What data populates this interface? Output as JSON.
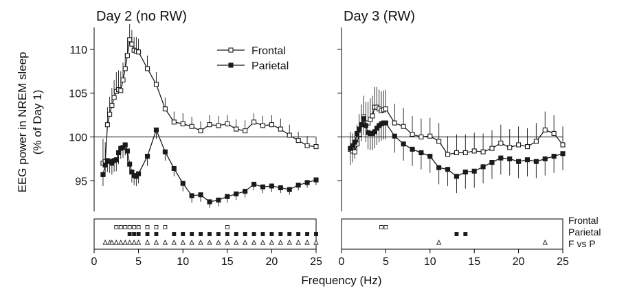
{
  "chart_data": {
    "type": "line",
    "ylabel": "EEG power in NREM sleep\n(% of Day 1)",
    "xlabel": "Frequency (Hz)",
    "xlim": [
      0,
      25
    ],
    "ylim": [
      91.5,
      112.5
    ],
    "xticks": [
      0,
      5,
      10,
      15,
      20,
      25
    ],
    "yticks": [
      95,
      100,
      105,
      110
    ],
    "reference_line": 100,
    "grid": false,
    "legend_position": "top-right of left panel",
    "x": [
      1,
      1.25,
      1.5,
      1.75,
      2,
      2.25,
      2.5,
      2.75,
      3,
      3.25,
      3.5,
      3.75,
      4,
      4.25,
      4.5,
      4.75,
      5,
      6,
      7,
      8,
      9,
      10,
      11,
      12,
      13,
      14,
      15,
      16,
      17,
      18,
      19,
      20,
      21,
      22,
      23,
      24,
      25
    ],
    "panels": [
      {
        "title": "Day 2 (no RW)",
        "series": [
          {
            "name": "Frontal",
            "marker": "open-square",
            "values": [
              97.0,
              97.2,
              101.4,
              102.6,
              103.6,
              104.5,
              105.2,
              105.4,
              105.3,
              106.5,
              107.8,
              109.3,
              111.1,
              110.6,
              109.9,
              109.8,
              109.7,
              107.8,
              106.0,
              103.2,
              101.7,
              101.5,
              101.2,
              100.7,
              101.4,
              101.3,
              101.5,
              100.9,
              100.7,
              101.7,
              101.3,
              101.4,
              100.9,
              100.2,
              99.6,
              99.0,
              98.9
            ],
            "errors": [
              2.8,
              2.2,
              2.0,
              2.0,
              2.0,
              2.0,
              2.2,
              2.2,
              2.2,
              2.0,
              1.8,
              1.6,
              1.8,
              1.6,
              1.5,
              1.6,
              1.5,
              1.5,
              1.4,
              1.3,
              1.2,
              1.2,
              1.1,
              1.1,
              1.1,
              1.1,
              1.0,
              1.1,
              1.2,
              1.0,
              1.1,
              1.1,
              1.2,
              1.2,
              1.0,
              1.1,
              1.1
            ]
          },
          {
            "name": "Parietal",
            "marker": "filled-square",
            "values": [
              95.7,
              96.8,
              97.3,
              97.2,
              97.0,
              97.3,
              97.4,
              98.2,
              98.7,
              98.8,
              99.1,
              98.4,
              96.9,
              96.0,
              95.6,
              95.5,
              95.8,
              97.8,
              100.8,
              98.3,
              96.4,
              94.7,
              93.3,
              93.4,
              92.6,
              92.8,
              93.2,
              93.5,
              93.8,
              94.6,
              94.3,
              94.4,
              94.2,
              94.0,
              94.5,
              94.8,
              95.1
            ],
            "errors": [
              1.3,
              1.3,
              1.3,
              1.3,
              1.3,
              1.3,
              1.3,
              1.3,
              1.2,
              1.2,
              1.2,
              1.2,
              1.2,
              1.2,
              1.1,
              1.1,
              1.1,
              1.1,
              1.0,
              1.0,
              0.9,
              0.9,
              0.8,
              0.8,
              0.7,
              0.7,
              0.7,
              0.7,
              0.7,
              0.7,
              0.7,
              0.7,
              0.6,
              0.6,
              0.6,
              0.6,
              0.6
            ]
          }
        ]
      },
      {
        "title": "Day 3 (RW)",
        "series": [
          {
            "name": "Frontal",
            "marker": "open-square",
            "values": [
              98.6,
              98.4,
              98.3,
              99.2,
              100.3,
              101.4,
              102.3,
              101.6,
              101.6,
              102.0,
              102.4,
              103.4,
              103.4,
              103.2,
              103.0,
              103.1,
              103.2,
              101.6,
              101.2,
              100.3,
              100.0,
              100.1,
              99.5,
              98.0,
              98.2,
              98.2,
              98.4,
              98.3,
              98.7,
              99.3,
              98.8,
              99.1,
              98.9,
              99.5,
              100.8,
              100.4,
              99.1
            ],
            "errors": [
              2.0,
              2.0,
              2.0,
              2.2,
              2.3,
              2.3,
              2.4,
              2.4,
              2.4,
              2.4,
              2.3,
              2.3,
              2.3,
              2.2,
              2.2,
              2.2,
              2.2,
              2.2,
              2.1,
              2.1,
              2.1,
              2.1,
              2.1,
              2.1,
              2.1,
              2.1,
              2.1,
              2.1,
              2.1,
              2.1,
              2.1,
              2.1,
              2.1,
              2.1,
              2.1,
              2.1,
              2.1
            ]
          },
          {
            "name": "Parietal",
            "marker": "filled-square",
            "values": [
              98.7,
              99.0,
              99.4,
              100.4,
              100.9,
              101.4,
              102.1,
              101.3,
              100.5,
              100.4,
              100.4,
              100.6,
              101.0,
              101.3,
              101.5,
              101.6,
              101.6,
              100.1,
              99.2,
              98.6,
              98.2,
              97.8,
              96.5,
              96.3,
              95.5,
              96.0,
              96.1,
              96.6,
              97.1,
              97.6,
              97.5,
              97.2,
              97.4,
              97.2,
              97.5,
              97.8,
              98.1
            ],
            "errors": [
              1.9,
              1.9,
              1.9,
              1.9,
              1.9,
              1.9,
              1.9,
              1.9,
              1.9,
              1.9,
              1.9,
              1.9,
              1.9,
              1.9,
              1.9,
              1.9,
              1.9,
              1.9,
              1.9,
              1.9,
              1.9,
              1.9,
              1.9,
              1.9,
              1.9,
              1.9,
              1.9,
              1.9,
              1.9,
              1.9,
              1.9,
              1.9,
              1.9,
              1.9,
              1.9,
              1.9,
              1.9
            ]
          }
        ]
      }
    ],
    "significance": {
      "row_labels": [
        "Frontal",
        "Parietal",
        "F vs P"
      ],
      "markers": [
        "open-square",
        "filled-square",
        "open-triangle"
      ],
      "panels": [
        {
          "Frontal": [
            2.5,
            3,
            3.5,
            4,
            4.5,
            5,
            6,
            7,
            8,
            15
          ],
          "Parietal": [
            4,
            4.5,
            5,
            6,
            7,
            9,
            10,
            11,
            12,
            13,
            14,
            15,
            16,
            17,
            18,
            19,
            20,
            21,
            22,
            23,
            24,
            25
          ],
          "F vs P": [
            1.25,
            1.75,
            2,
            2.5,
            3,
            3.5,
            4,
            4.5,
            5,
            6,
            7,
            8,
            9,
            10,
            11,
            12,
            13,
            14,
            15,
            16,
            17,
            18,
            19,
            20,
            21,
            22,
            23,
            24,
            25
          ]
        },
        {
          "Frontal": [
            4.5,
            5
          ],
          "Parietal": [
            13,
            14
          ],
          "F vs P": [
            11,
            23
          ]
        }
      ]
    }
  }
}
